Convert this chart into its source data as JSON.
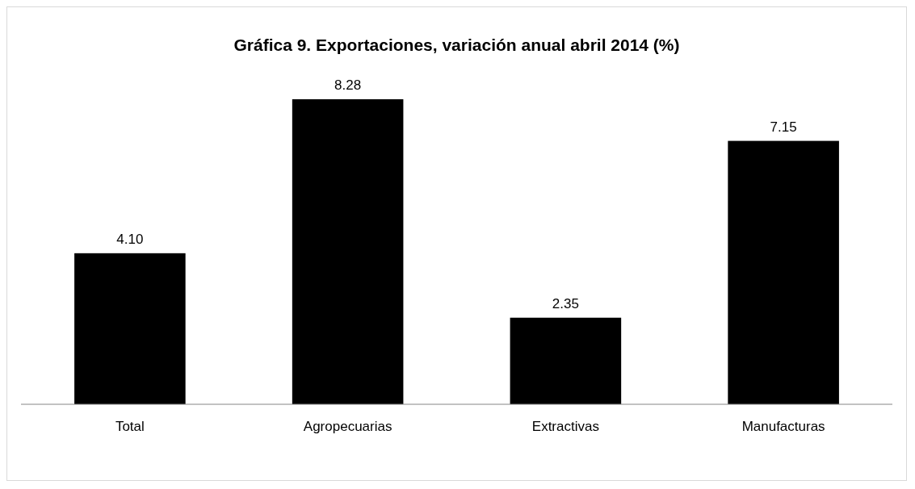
{
  "chart_data": {
    "type": "bar",
    "title": "Gráfica 9. Exportaciones, variación anual abril 2014 (%)",
    "categories": [
      "Total",
      "Agropecuarias",
      "Extractivas",
      "Manufacturas"
    ],
    "values": [
      4.1,
      8.28,
      2.35,
      7.15
    ],
    "value_labels": [
      "4.10",
      "8.28",
      "2.35",
      "7.15"
    ],
    "color": "#000000"
  }
}
